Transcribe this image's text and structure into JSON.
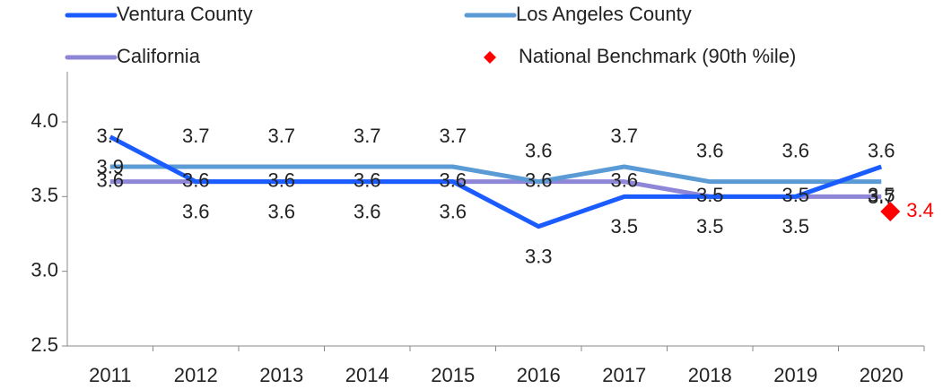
{
  "chart_data": {
    "type": "line",
    "categories": [
      "2011",
      "2012",
      "2013",
      "2014",
      "2015",
      "2016",
      "2017",
      "2018",
      "2019",
      "2020"
    ],
    "series": [
      {
        "name": "Ventura County",
        "color": "#1a5cff",
        "values": [
          3.9,
          3.6,
          3.6,
          3.6,
          3.6,
          3.3,
          3.5,
          3.5,
          3.5,
          3.7
        ]
      },
      {
        "name": "Los Angeles County",
        "color": "#5b9bd5",
        "values": [
          3.7,
          3.7,
          3.7,
          3.7,
          3.7,
          3.6,
          3.7,
          3.6,
          3.6,
          3.6
        ]
      },
      {
        "name": "California",
        "color": "#8e86d6",
        "values": [
          3.6,
          3.6,
          3.6,
          3.6,
          3.6,
          3.6,
          3.6,
          3.5,
          3.5,
          3.5
        ]
      },
      {
        "name": "National Benchmark (90th %ile)",
        "color": "#ff0000",
        "marker": "diamond",
        "values": [
          null,
          null,
          null,
          null,
          null,
          null,
          null,
          null,
          null,
          3.4
        ]
      }
    ],
    "ylim": [
      2.5,
      4.3
    ],
    "yticks": [
      {
        "value": 2.5,
        "label": "2.5"
      },
      {
        "value": 3.0,
        "label": "3.0"
      },
      {
        "value": 3.5,
        "label": "3.5"
      },
      {
        "value": 4.0,
        "label": "4.0"
      }
    ],
    "legend": "top"
  }
}
